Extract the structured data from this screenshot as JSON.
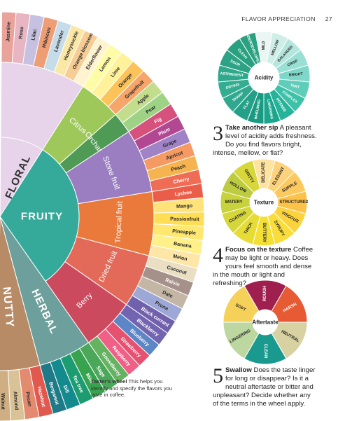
{
  "header": {
    "section": "FLAVOR APPRECIATION",
    "page": "27"
  },
  "colors": {
    "floral": "#e7d3ea",
    "fruity": "#35a99a",
    "herbal": "#6d9f9c",
    "nutty": "#b68b66",
    "citrus": "#9fc85a",
    "orchard": "#4f9a54",
    "stone": "#9a7ec1",
    "tropical": "#ea7a3b",
    "dried": "#e36a59",
    "berry": "#cc4a5e"
  },
  "wheel": {
    "categories": [
      "FLORAL",
      "FRUITY",
      "HERBAL",
      "NUTTY"
    ],
    "subcategories": [
      "Citrus",
      "Orchard",
      "Stone fruit",
      "Tropical fruit",
      "Dried fruit",
      "Berry"
    ],
    "floral_flavors": [
      "Jasmine",
      "Rose",
      "Lilac",
      "Hibiscus",
      "Lavender",
      "Honeysuckle",
      "Orange blossom",
      "Elderflower"
    ],
    "fruit_flavors": [
      "Lemon",
      "Lime",
      "Orange",
      "Grapefruit",
      "Apple",
      "Pear",
      "Fig",
      "Plum",
      "Grape",
      "Apricot",
      "Peach",
      "Cherry",
      "Lychee",
      "Mango",
      "Passionfruit",
      "Pineapple",
      "Banana",
      "Melon",
      "Coconut",
      "Raisin",
      "Date",
      "Prune",
      "Black currant",
      "Blackberry",
      "Blueberry",
      "Strawberry",
      "Raspberry",
      "Gooseberry"
    ],
    "herbal_flavors": [
      "Sage",
      "Mint",
      "Tea tree",
      "Dill",
      "Bergamot"
    ],
    "nutty_flavors": [
      "Hazelnut",
      "Pecan",
      "Almond",
      "Walnut"
    ]
  },
  "caption": {
    "title": "Taster's wheel",
    "body": "This helps you identify and specify the flavors you taste in coffee."
  },
  "acidity": {
    "center": "Acidity",
    "segments": [
      "MILD",
      "MELLOW",
      "BALANCED",
      "CRISP",
      "BRIGHT",
      "TART",
      "COMPLEX",
      "INTENSE",
      "LINGERING",
      "WHELMING",
      "FLAT",
      "SHARP",
      "DRYING",
      "ASTRINGENT",
      "SOUR",
      "CLEAN",
      "UNDERDEVELOPED"
    ]
  },
  "step3": {
    "number": "3",
    "title": "Take another sip",
    "body": "A pleasant level of acidity adds freshness. Do you find flavors bright, intense, mellow, or flat?"
  },
  "texture": {
    "center": "Texture",
    "segments": [
      "DELICATE",
      "ELEGANT",
      "SUPPLE",
      "STRUCTURED",
      "VISCOUS",
      "SYRUPY",
      "BUTTERY",
      "THICK",
      "COATING",
      "WATERY",
      "HOLLOW",
      "GRITTY"
    ]
  },
  "step4": {
    "number": "4",
    "title": "Focus on the texture",
    "body": "Coffee may be light or heavy. Does yours feel smooth and dense in the mouth or light and refreshing?"
  },
  "aftertaste": {
    "center": "Aftertaste",
    "segments": [
      "ROUGH",
      "HARSH",
      "NEUTRAL",
      "CLEAN",
      "LINGERING",
      "SOFT"
    ]
  },
  "step5": {
    "number": "5",
    "title": "Swallow",
    "body": "Does the taste linger for long or disappear? Is it a neutral aftertaste or bitter and unpleasant? Decide whether any of the terms in the wheel apply."
  }
}
